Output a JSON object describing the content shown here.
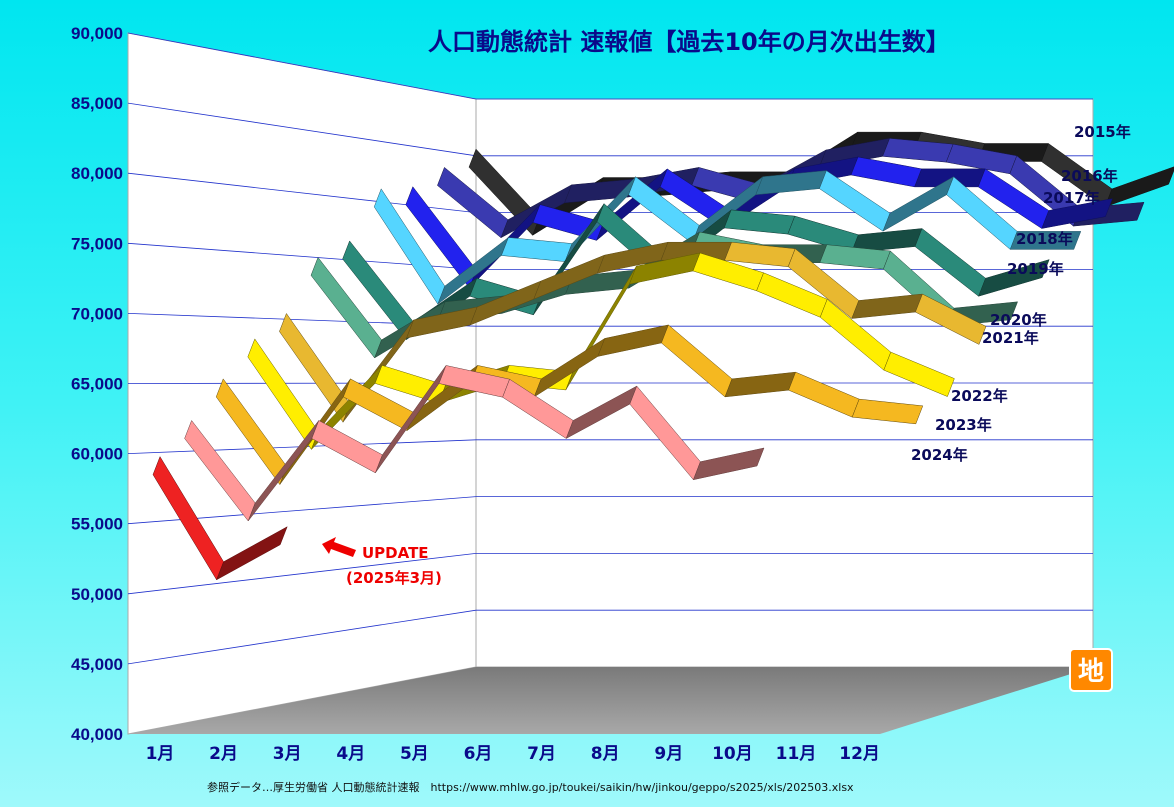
{
  "chart_data": {
    "type": "line",
    "title": "人口動態統計 速報値【過去10年の月次出生数】",
    "xlabel": "",
    "ylabel": "",
    "categories": [
      "1月",
      "2月",
      "3月",
      "4月",
      "5月",
      "6月",
      "7月",
      "8月",
      "9月",
      "10月",
      "11月",
      "12月"
    ],
    "y_ticks": [
      "40,000",
      "45,000",
      "50,000",
      "55,000",
      "60,000",
      "65,000",
      "70,000",
      "75,000",
      "80,000",
      "85,000",
      "90,000"
    ],
    "ylim": [
      40000,
      90000
    ],
    "grid": true,
    "series": [
      {
        "name": "2015年",
        "values": [
          84000,
          78000,
          81500,
          81500,
          82000,
          82000,
          85500,
          85500,
          84500,
          84500,
          80500,
          82500
        ],
        "color": "#303030"
      },
      {
        "name": "2016年",
        "values": [
          82000,
          77500,
          80500,
          81000,
          82000,
          80500,
          83500,
          84500,
          84000,
          83000,
          78500,
          79000
        ],
        "color": "#3a3ab0"
      },
      {
        "name": "2017年",
        "values": [
          80000,
          73000,
          78500,
          77000,
          81500,
          78000,
          81500,
          82500,
          81500,
          81500,
          78000,
          79000
        ],
        "color": "#2222ee"
      },
      {
        "name": "2018年",
        "values": [
          79500,
          71500,
          75500,
          75000,
          80500,
          76500,
          80500,
          81000,
          77500,
          80500,
          76000,
          76000
        ],
        "color": "#55d5ff"
      },
      {
        "name": "2019年",
        "values": [
          75000,
          68500,
          72000,
          70500,
          78000,
          73500,
          77500,
          77000,
          75500,
          76000,
          72000,
          73500
        ],
        "color": "#2a8a7a"
      },
      {
        "name": "2020年",
        "values": [
          73500,
          67000,
          70000,
          70500,
          72000,
          72500,
          75500,
          74500,
          74500,
          74000,
          69500,
          70000
        ],
        "color": "#5ab090"
      },
      {
        "name": "2021年",
        "values": [
          69000,
          62000,
          68500,
          69500,
          71500,
          73500,
          74500,
          74500,
          74000,
          70000,
          70500,
          68000
        ],
        "color": "#e8b830"
      },
      {
        "name": "2022年",
        "values": [
          67000,
          60000,
          65000,
          63500,
          65000,
          64500,
          72500,
          73500,
          72000,
          70000,
          66000,
          64000
        ],
        "color": "#ffee00"
      },
      {
        "name": "2023年",
        "values": [
          64000,
          57500,
          64000,
          61500,
          65000,
          64000,
          67000,
          68000,
          64000,
          64500,
          62500,
          62000
        ],
        "color": "#f5b820"
      },
      {
        "name": "2024年",
        "values": [
          61000,
          55000,
          61000,
          58500,
          65000,
          64000,
          61000,
          63500,
          58000,
          59000,
          null,
          null
        ],
        "color": "#ff9898"
      },
      {
        "name": "2025年",
        "values": [
          58500,
          51000,
          53500,
          null,
          null,
          null,
          null,
          null,
          null,
          null,
          null,
          null
        ],
        "color": "#ee2222"
      }
    ],
    "annotations": [
      {
        "text": "UPDATE",
        "series": "2025年",
        "month": "3月"
      },
      {
        "text": "(2025年3月)",
        "series": "2025年",
        "month": "3月"
      }
    ]
  },
  "source_text": "参照データ…厚生労働省 人口動態統計速報　https://www.mhlw.go.jp/toukei/saikin/hw/jinkou/geppo/s2025/xls/202503.xlsx",
  "logo_text": "地"
}
